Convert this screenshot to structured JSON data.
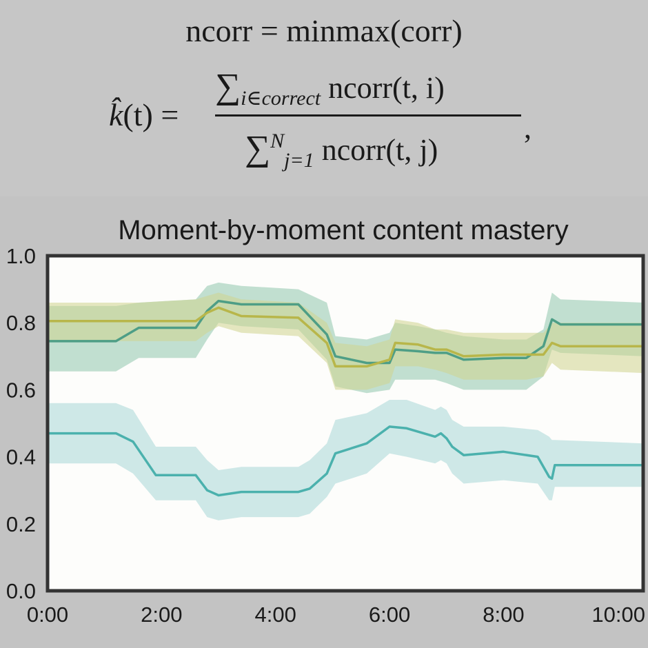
{
  "formula": {
    "line1": "ncorr = minmax(corr)",
    "lhs_k": "k̂",
    "lhs_rest": "(t) =",
    "num_sigma": "∑",
    "num_sub": "i∈correct",
    "num_body": " ncorr(t, i)",
    "den_sigma": "∑",
    "den_sup": "N",
    "den_sub": "j=1",
    "den_body": " ncorr(t, j)",
    "comma": ","
  },
  "chart_data": {
    "type": "line",
    "title": "Moment-by-moment content mastery",
    "xlabel": "",
    "ylabel": "",
    "xlim": [
      0,
      10.45
    ],
    "ylim": [
      0,
      1
    ],
    "xticks": [
      0,
      2,
      4,
      6,
      8,
      10
    ],
    "xtick_labels": [
      "0:00",
      "2:00",
      "4:00",
      "6:00",
      "8:00",
      "10:00"
    ],
    "yticks": [
      0,
      0.2,
      0.4,
      0.6,
      0.8,
      1
    ],
    "ytick_labels": [
      "0.0",
      "0.2",
      "0.4",
      "0.6",
      "0.8",
      "1.0"
    ],
    "grid": false,
    "background": "#fdfdfb",
    "series": [
      {
        "color": "#4e9e86",
        "band_color": "#8fc6ad",
        "x": [
          0,
          1.2,
          1.6,
          2.6,
          2.8,
          3.0,
          3.4,
          4.4,
          4.9,
          5.05,
          5.6,
          6.0,
          6.1,
          6.5,
          6.8,
          7.0,
          7.3,
          8.0,
          8.4,
          8.7,
          8.85,
          9.0,
          10.45
        ],
        "y": [
          0.745,
          0.745,
          0.785,
          0.785,
          0.835,
          0.865,
          0.855,
          0.855,
          0.765,
          0.7,
          0.68,
          0.68,
          0.72,
          0.715,
          0.71,
          0.71,
          0.69,
          0.695,
          0.695,
          0.73,
          0.81,
          0.795,
          0.795
        ],
        "upper": [
          0.85,
          0.85,
          0.86,
          0.87,
          0.91,
          0.92,
          0.91,
          0.9,
          0.86,
          0.76,
          0.75,
          0.77,
          0.8,
          0.79,
          0.78,
          0.77,
          0.76,
          0.75,
          0.75,
          0.78,
          0.89,
          0.87,
          0.86
        ],
        "lower": [
          0.655,
          0.655,
          0.695,
          0.695,
          0.75,
          0.8,
          0.79,
          0.78,
          0.69,
          0.61,
          0.59,
          0.6,
          0.63,
          0.63,
          0.63,
          0.62,
          0.6,
          0.6,
          0.6,
          0.64,
          0.72,
          0.71,
          0.7
        ]
      },
      {
        "color": "#b8b64a",
        "band_color": "#cfd48e",
        "x": [
          0,
          1.2,
          1.6,
          2.6,
          2.8,
          3.0,
          3.4,
          4.4,
          4.9,
          5.05,
          5.6,
          6.0,
          6.1,
          6.5,
          6.8,
          7.0,
          7.3,
          8.0,
          8.4,
          8.7,
          8.85,
          9.0,
          10.45
        ],
        "y": [
          0.805,
          0.805,
          0.805,
          0.805,
          0.83,
          0.845,
          0.82,
          0.815,
          0.74,
          0.67,
          0.67,
          0.69,
          0.74,
          0.735,
          0.72,
          0.72,
          0.7,
          0.705,
          0.705,
          0.705,
          0.74,
          0.73,
          0.73
        ],
        "upper": [
          0.86,
          0.86,
          0.86,
          0.87,
          0.88,
          0.89,
          0.87,
          0.86,
          0.8,
          0.74,
          0.73,
          0.75,
          0.81,
          0.8,
          0.78,
          0.78,
          0.77,
          0.77,
          0.77,
          0.77,
          0.8,
          0.8,
          0.8
        ],
        "lower": [
          0.745,
          0.745,
          0.745,
          0.745,
          0.77,
          0.79,
          0.77,
          0.76,
          0.68,
          0.6,
          0.6,
          0.62,
          0.67,
          0.67,
          0.66,
          0.65,
          0.63,
          0.63,
          0.63,
          0.64,
          0.68,
          0.66,
          0.65
        ]
      },
      {
        "color": "#4bb1ad",
        "band_color": "#a8d7d7",
        "x": [
          0,
          1.2,
          1.5,
          1.9,
          2.6,
          2.8,
          3.0,
          3.4,
          4.4,
          4.6,
          4.9,
          5.05,
          5.6,
          6.0,
          6.3,
          6.8,
          6.9,
          7.0,
          7.1,
          7.3,
          8.0,
          8.6,
          8.8,
          8.85,
          8.9,
          10.45
        ],
        "y": [
          0.47,
          0.47,
          0.445,
          0.345,
          0.345,
          0.3,
          0.285,
          0.295,
          0.295,
          0.305,
          0.35,
          0.41,
          0.44,
          0.49,
          0.485,
          0.46,
          0.47,
          0.455,
          0.43,
          0.405,
          0.415,
          0.4,
          0.34,
          0.335,
          0.375,
          0.375
        ],
        "upper": [
          0.56,
          0.56,
          0.54,
          0.43,
          0.43,
          0.39,
          0.36,
          0.37,
          0.37,
          0.39,
          0.44,
          0.51,
          0.53,
          0.57,
          0.57,
          0.54,
          0.55,
          0.54,
          0.51,
          0.49,
          0.49,
          0.48,
          0.46,
          0.45,
          0.45,
          0.44
        ],
        "lower": [
          0.38,
          0.38,
          0.35,
          0.27,
          0.27,
          0.22,
          0.21,
          0.22,
          0.22,
          0.23,
          0.28,
          0.32,
          0.35,
          0.41,
          0.4,
          0.38,
          0.39,
          0.38,
          0.35,
          0.32,
          0.33,
          0.32,
          0.27,
          0.27,
          0.31,
          0.31
        ]
      }
    ]
  }
}
